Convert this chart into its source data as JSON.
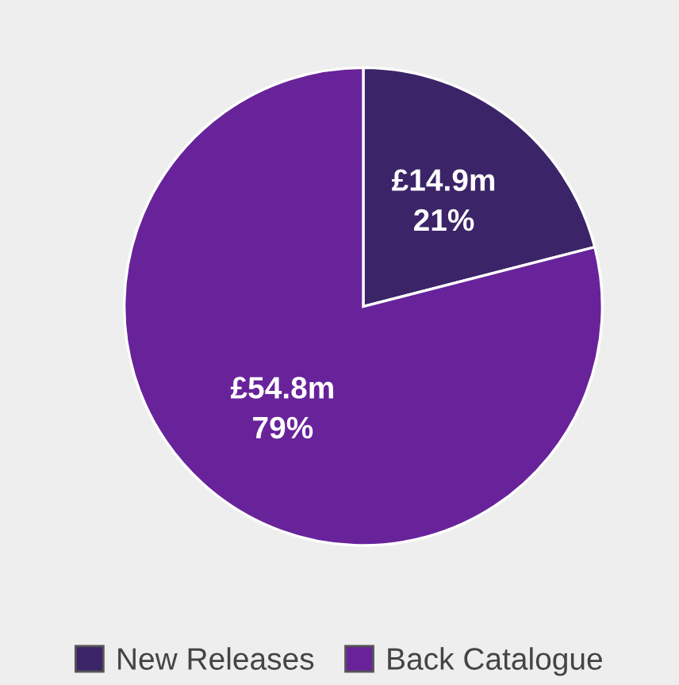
{
  "chart_data": {
    "type": "pie",
    "categories": [
      "New Releases",
      "Back Catalogue"
    ],
    "values": [
      21,
      79
    ],
    "colors": [
      "#3c2468",
      "#68239a"
    ],
    "value_labels": [
      "£14.9m\n21%",
      "£54.8m\n79%"
    ],
    "legend": "bottom"
  }
}
